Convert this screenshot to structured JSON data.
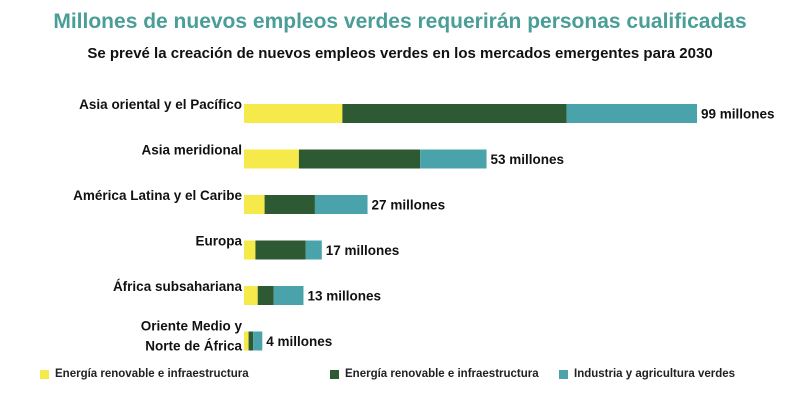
{
  "title": "Millones de nuevos empleos verdes requerirán personas cualificadas",
  "subtitle": "Se prevé la creación de nuevos empleos verdes en los mercados emergentes para 2030",
  "colors": {
    "title": "#4a9e97",
    "yellow": "#f5ea4a",
    "dark_green": "#2d5a32",
    "teal": "#4aa3aa"
  },
  "legend": [
    {
      "label": "Energía renovable e infraestructura",
      "color": "#f5ea4a"
    },
    {
      "label": "Energía renovable e infraestructura",
      "color": "#2d5a32"
    },
    {
      "label": "Industria y agricultura verdes",
      "color": "#4aa3aa"
    }
  ],
  "chart_data": {
    "type": "bar",
    "orientation": "horizontal",
    "stacked": true,
    "categories": [
      [
        "Asia oriental y el Pacífico"
      ],
      [
        "Asia meridional"
      ],
      [
        "América Latina y el Caribe"
      ],
      [
        "Europa"
      ],
      [
        "África subsahariana"
      ],
      [
        "Oriente Medio y",
        "Norte de África"
      ]
    ],
    "series": [
      {
        "name": "Energía renovable e infraestructura",
        "color": "#f5ea4a",
        "values": [
          21.5,
          12,
          4.5,
          2.5,
          3,
          1
        ]
      },
      {
        "name": "Energía renovable e infraestructura",
        "color": "#2d5a32",
        "values": [
          49,
          26.5,
          11,
          11,
          3.5,
          1
        ]
      },
      {
        "name": "Industria y agricultura verdes",
        "color": "#4aa3aa",
        "values": [
          28.5,
          14.5,
          11.5,
          3.5,
          6.5,
          2
        ]
      }
    ],
    "totals_labels": [
      "99 millones",
      "53 millones",
      "27 millones",
      "17 millones",
      "13 millones",
      "4 millones"
    ],
    "xlim": [
      0,
      99
    ],
    "grid": false,
    "legend_position": "bottom"
  }
}
